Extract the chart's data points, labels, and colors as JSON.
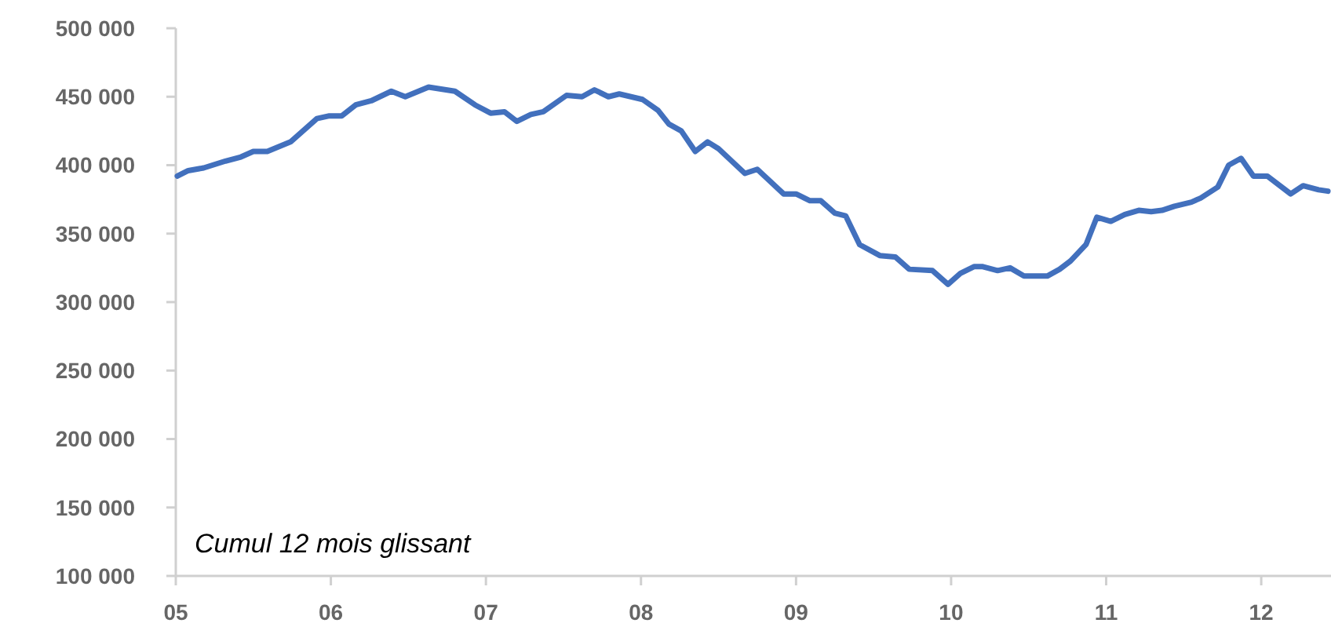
{
  "chart_data": {
    "type": "line",
    "annotations": [
      "Cumul 12 mois glissant"
    ],
    "xlim": [
      2005,
      2012.45
    ],
    "xticks": [
      {
        "value": 2005,
        "label": "05"
      },
      {
        "value": 2006,
        "label": "06"
      },
      {
        "value": 2007,
        "label": "07"
      },
      {
        "value": 2008,
        "label": "08"
      },
      {
        "value": 2009,
        "label": "09"
      },
      {
        "value": 2010,
        "label": "10"
      },
      {
        "value": 2011,
        "label": "11"
      },
      {
        "value": 2012,
        "label": "12"
      }
    ],
    "ylim": [
      100000,
      500000
    ],
    "yticks": [
      {
        "value": 100000,
        "label": "100 000"
      },
      {
        "value": 150000,
        "label": "150 000"
      },
      {
        "value": 200000,
        "label": "200 000"
      },
      {
        "value": 250000,
        "label": "250 000"
      },
      {
        "value": 300000,
        "label": "300 000"
      },
      {
        "value": 350000,
        "label": "350 000"
      },
      {
        "value": 400000,
        "label": "400 000"
      },
      {
        "value": 450000,
        "label": "450 000"
      },
      {
        "value": 500000,
        "label": "500 000"
      }
    ],
    "grid": false,
    "marker": "none",
    "line_style": "solid",
    "series": [
      {
        "color": "#4270bd",
        "x": [
          2005.01,
          2005.08,
          2005.18,
          2005.32,
          2005.42,
          2005.5,
          2005.59,
          2005.74,
          2005.91,
          2005.99,
          2006.07,
          2006.16,
          2006.26,
          2006.39,
          2006.48,
          2006.63,
          2006.8,
          2006.93,
          2007.03,
          2007.12,
          2007.2,
          2007.29,
          2007.37,
          2007.52,
          2007.62,
          2007.7,
          2007.79,
          2007.86,
          2008.01,
          2008.11,
          2008.18,
          2008.26,
          2008.35,
          2008.43,
          2008.5,
          2008.67,
          2008.75,
          2008.92,
          2009,
          2009.09,
          2009.16,
          2009.25,
          2009.32,
          2009.41,
          2009.54,
          2009.64,
          2009.73,
          2009.88,
          2009.98,
          2010.06,
          2010.15,
          2010.2,
          2010.3,
          2010.38,
          2010.47,
          2010.55,
          2010.62,
          2010.7,
          2010.77,
          2010.87,
          2010.94,
          2011.03,
          2011.12,
          2011.21,
          2011.29,
          2011.36,
          2011.44,
          2011.55,
          2011.61,
          2011.72,
          2011.79,
          2011.87,
          2011.95,
          2012.04,
          2012.19,
          2012.27,
          2012.37,
          2012.43
        ],
        "values": [
          392000,
          396000,
          398000,
          403000,
          406000,
          410000,
          410000,
          417000,
          434000,
          436000,
          436000,
          444000,
          447000,
          454000,
          450000,
          457000,
          454000,
          444000,
          438000,
          439000,
          432000,
          437000,
          439000,
          451000,
          450000,
          455000,
          450000,
          452000,
          448000,
          440000,
          430000,
          425000,
          410000,
          417000,
          412000,
          394000,
          397000,
          379000,
          379000,
          374000,
          374000,
          365000,
          363000,
          342000,
          334000,
          333000,
          324000,
          323000,
          313000,
          321000,
          326000,
          326000,
          323000,
          325000,
          319000,
          319000,
          319000,
          324000,
          330000,
          342000,
          362000,
          359000,
          364000,
          367000,
          366000,
          367000,
          370000,
          373000,
          376000,
          384000,
          400000,
          405000,
          392000,
          392000,
          379000,
          385000,
          382000,
          381000
        ]
      }
    ]
  }
}
